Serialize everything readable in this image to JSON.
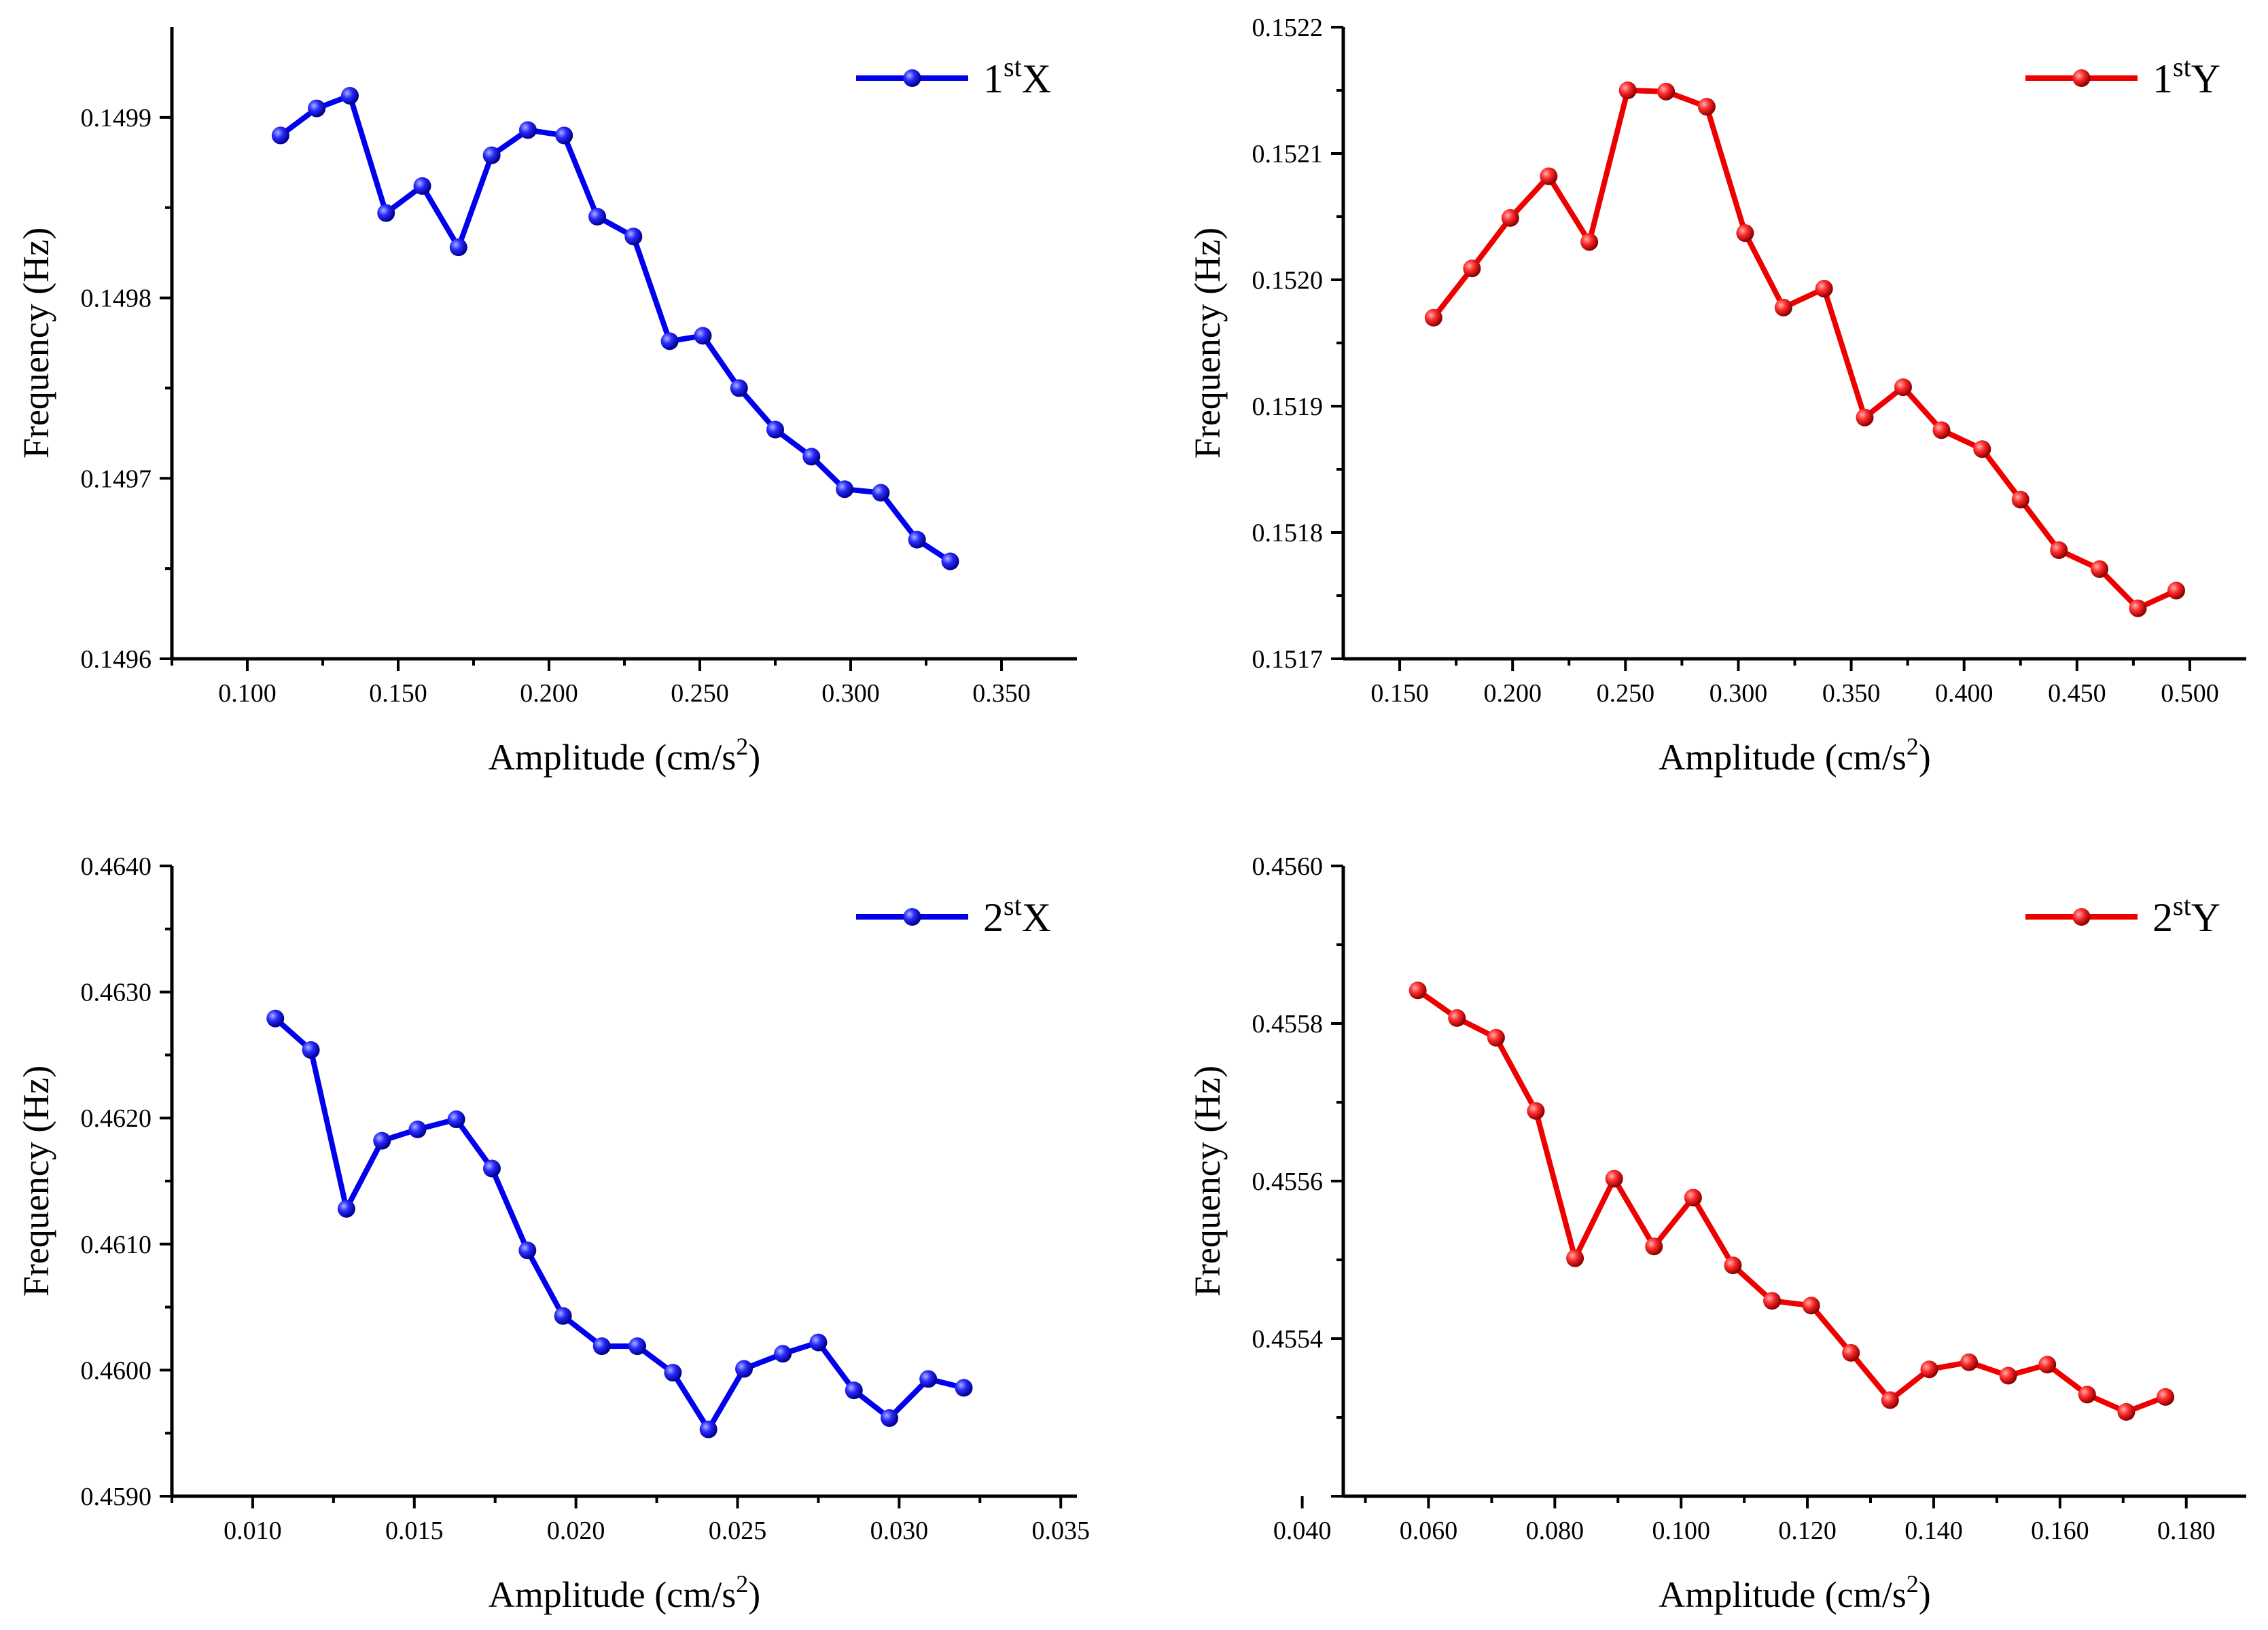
{
  "colors": {
    "blue": "#0000ee",
    "red": "#ee0000"
  },
  "chart_data": [
    {
      "type": "line",
      "title": "",
      "xlabel": "Amplitude (cm/s²)",
      "ylabel": "Frequency (Hz)",
      "xlim": [
        0.075,
        0.375
      ],
      "ylim": [
        0.1496,
        0.14995
      ],
      "xticks": [
        0.1,
        0.15,
        0.2,
        0.25,
        0.3,
        0.35
      ],
      "xtick_labels": [
        "0.100",
        "0.150",
        "0.200",
        "0.250",
        "0.300",
        "0.350"
      ],
      "yticks": [
        0.1496,
        0.1497,
        0.1498,
        0.1499
      ],
      "ytick_labels": [
        "0.1496",
        "0.1497",
        "0.1498",
        "0.1499"
      ],
      "legend_position": "top-right",
      "series": [
        {
          "name": "1stX",
          "legend_main": "1",
          "legend_sup": "st",
          "legend_tail": "X",
          "color": "#0000ee",
          "x": [
            0.111,
            0.123,
            0.134,
            0.146,
            0.158,
            0.17,
            0.181,
            0.193,
            0.205,
            0.216,
            0.228,
            0.24,
            0.251,
            0.263,
            0.275,
            0.287,
            0.298,
            0.31,
            0.322,
            0.333
          ],
          "y": [
            0.14989,
            0.149905,
            0.149912,
            0.149847,
            0.149862,
            0.149828,
            0.149879,
            0.149893,
            0.14989,
            0.149845,
            0.149834,
            0.149776,
            0.149779,
            0.14975,
            0.149727,
            0.149712,
            0.149694,
            0.149692,
            0.149666,
            0.149654
          ]
        }
      ]
    },
    {
      "type": "line",
      "title": "",
      "xlabel": "Amplitude (cm/s²)",
      "ylabel": "Frequency (Hz)",
      "xlim": [
        0.125,
        0.525
      ],
      "ylim": [
        0.1517,
        0.1522
      ],
      "xticks": [
        0.15,
        0.2,
        0.25,
        0.3,
        0.35,
        0.4,
        0.45,
        0.5
      ],
      "xtick_labels": [
        "0.150",
        "0.200",
        "0.250",
        "0.300",
        "0.350",
        "0.400",
        "0.450",
        "0.500"
      ],
      "yticks": [
        0.1517,
        0.1518,
        0.1519,
        0.152,
        0.1521,
        0.1522
      ],
      "ytick_labels": [
        "0.1517",
        "0.1518",
        "0.1519",
        "0.1520",
        "0.1521",
        "0.1522"
      ],
      "legend_position": "top-right",
      "series": [
        {
          "name": "1stY",
          "legend_main": "1",
          "legend_sup": "st",
          "legend_tail": "Y",
          "color": "#ee0000",
          "x": [
            0.165,
            0.182,
            0.199,
            0.216,
            0.234,
            0.251,
            0.268,
            0.286,
            0.303,
            0.32,
            0.338,
            0.356,
            0.373,
            0.39,
            0.408,
            0.425,
            0.442,
            0.46,
            0.477,
            0.494
          ],
          "y": [
            0.15197,
            0.152009,
            0.152049,
            0.152082,
            0.15203,
            0.15215,
            0.152149,
            0.152137,
            0.152037,
            0.151978,
            0.151993,
            0.151891,
            0.151915,
            0.151881,
            0.151866,
            0.151826,
            0.151786,
            0.151771,
            0.15174,
            0.151754
          ]
        }
      ]
    },
    {
      "type": "line",
      "title": "",
      "xlabel": "Amplitude (cm/s²)",
      "ylabel": "Frequency (Hz)",
      "xlim": [
        0.0075,
        0.0355
      ],
      "ylim": [
        0.459,
        0.464
      ],
      "xticks": [
        0.01,
        0.015,
        0.02,
        0.025,
        0.03,
        0.035
      ],
      "xtick_labels": [
        "0.010",
        "0.015",
        "0.020",
        "0.025",
        "0.030",
        "0.035"
      ],
      "yticks": [
        0.459,
        0.46,
        0.461,
        0.462,
        0.463,
        0.464
      ],
      "ytick_labels": [
        "0.4590",
        "0.4600",
        "0.4610",
        "0.4620",
        "0.4630",
        "0.4640"
      ],
      "legend_position": "top-right",
      "series": [
        {
          "name": "2stX",
          "legend_main": "2",
          "legend_sup": "st",
          "legend_tail": "X",
          "color": "#0000ee",
          "x": [
            0.0107,
            0.0118,
            0.0129,
            0.014,
            0.0151,
            0.0163,
            0.0174,
            0.0185,
            0.0196,
            0.0208,
            0.0219,
            0.023,
            0.0241,
            0.0252,
            0.0264,
            0.0275,
            0.0286,
            0.0297,
            0.0309,
            0.032
          ],
          "y": [
            0.46279,
            0.46254,
            0.46128,
            0.46182,
            0.46191,
            0.46199,
            0.4616,
            0.46095,
            0.46043,
            0.46019,
            0.46019,
            0.45998,
            0.45953,
            0.46001,
            0.46013,
            0.46022,
            0.45984,
            0.45962,
            0.45993,
            0.45986
          ]
        }
      ]
    },
    {
      "type": "line",
      "title": "",
      "xlabel": "Amplitude (cm/s²)",
      "ylabel": "Frequency (Hz)",
      "xlim": [
        0.0465,
        0.1895
      ],
      "ylim": [
        0.4552,
        0.456
      ],
      "xticks": [
        0.04,
        0.06,
        0.08,
        0.1,
        0.12,
        0.14,
        0.16,
        0.18
      ],
      "xtick_labels": [
        "0.040",
        "0.060",
        "0.080",
        "0.100",
        "0.120",
        "0.140",
        "0.160",
        "0.180"
      ],
      "yticks": [
        0.4552,
        0.4554,
        0.4556,
        0.4558,
        0.456
      ],
      "ytick_labels": [
        "",
        "0.4554",
        "0.4556",
        "0.4558",
        "0.4560"
      ],
      "legend_position": "top-right",
      "series": [
        {
          "name": "2stY",
          "legend_main": "2",
          "legend_sup": "st",
          "legend_tail": "Y",
          "color": "#ee0000",
          "x": [
            0.0583,
            0.0645,
            0.0707,
            0.077,
            0.0832,
            0.0894,
            0.0957,
            0.1019,
            0.1082,
            0.1144,
            0.1206,
            0.1269,
            0.1331,
            0.1393,
            0.1456,
            0.1518,
            0.158,
            0.1643,
            0.1705,
            0.1767
          ],
          "y": [
            0.455842,
            0.455807,
            0.455782,
            0.455689,
            0.455502,
            0.455603,
            0.455517,
            0.455579,
            0.455493,
            0.455448,
            0.455442,
            0.455382,
            0.455322,
            0.455361,
            0.45537,
            0.455353,
            0.455367,
            0.455329,
            0.455307,
            0.455326
          ]
        }
      ]
    }
  ]
}
